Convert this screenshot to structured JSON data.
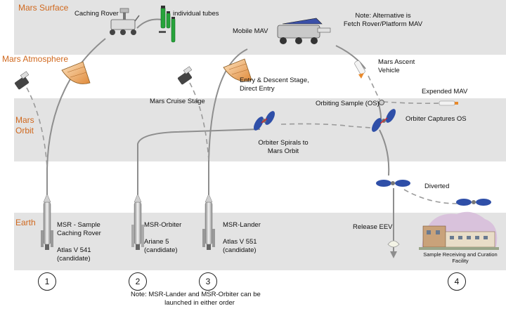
{
  "zones": {
    "surface": "Mars Surface",
    "atmosphere": "Mars Atmosphere",
    "orbit_line1": "Mars",
    "orbit_line2": "Orbit",
    "earth": "Earth"
  },
  "labels": {
    "caching_rover": "Caching Rover",
    "individual_tubes": "individual tubes",
    "mobile_mav": "Mobile MAV",
    "note_alt_1": "Note: Alternative is",
    "note_alt_2": "Fetch Rover/Platform MAV",
    "mars_ascent_1": "Mars Ascent",
    "mars_ascent_2": "Vehicle",
    "expended_mav": "Expended MAV",
    "entry_descent_1": "Entry & Descent Stage,",
    "entry_descent_2": "Direct Entry",
    "mars_cruise_stage": "Mars Cruise Stage",
    "orbiting_sample": "Orbiting Sample (OS)",
    "orbiter_captures": "Orbiter Captures OS",
    "orbiter_spirals_1": "Orbiter Spirals to",
    "orbiter_spirals_2": "Mars Orbit",
    "diverted": "Diverted",
    "release_eev": "Release EEV",
    "facility_1": "Sample Receiving and Curation",
    "facility_2": "Facility"
  },
  "launches": [
    {
      "step": "1",
      "name_1": "MSR - Sample",
      "name_2": "Caching Rover",
      "vehicle": "Atlas V 541",
      "status": "(candidate)"
    },
    {
      "step": "2",
      "name_1": "MSR-Orbiter",
      "vehicle": "Ariane 5",
      "status": "(candidate)"
    },
    {
      "step": "3",
      "name_1": "MSR-Lander",
      "vehicle": "Atlas V 551",
      "status": "(candidate)"
    }
  ],
  "step_4": "4",
  "order_note_1": "Note: MSR-Lander and MSR-Orbiter can be",
  "order_note_2": "launched in either order",
  "colors": {
    "band": "#e3e3e3",
    "zone_label": "#d0681d",
    "trajectory": "#8a8a8a",
    "solar_panel": "#2f4fa8",
    "heat_shield": "#f0b070",
    "rover_body": "#dcdcdc",
    "tube_green": "#27a33a"
  },
  "icons": [
    "rocket-icon",
    "rover-icon",
    "sample-tube-icon",
    "mav-rover-icon",
    "aeroshell-icon",
    "cruise-stage-icon",
    "orbiter-icon",
    "ascent-vehicle-icon",
    "sample-capsule-icon",
    "facility-icon",
    "entry-vehicle-icon"
  ]
}
